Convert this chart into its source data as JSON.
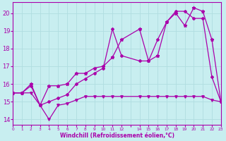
{
  "xlabel": "Windchill (Refroidissement éolien,°C)",
  "bg_color": "#c8eef0",
  "grid_color": "#b0dde0",
  "line_color": "#aa00aa",
  "xlim": [
    -0.5,
    23.5
  ],
  "ylim": [
    13.7,
    20.6
  ],
  "y_ticks": [
    14,
    15,
    16,
    17,
    18,
    19,
    20
  ],
  "x_tick_labels": [
    "0",
    "1",
    "2",
    "3",
    "4",
    "5",
    "6",
    "7",
    "8",
    "9",
    "1011",
    "12",
    "",
    "14",
    "15",
    "16",
    "17",
    "18",
    "19",
    "20",
    "21",
    "22",
    "23"
  ],
  "series1_x": [
    0,
    1,
    2,
    3,
    4,
    5,
    6,
    7,
    8,
    9,
    10,
    11,
    12,
    14,
    15,
    16,
    17,
    18,
    19,
    20,
    21,
    22,
    23
  ],
  "series1_y": [
    15.5,
    15.5,
    15.9,
    14.8,
    15.0,
    15.2,
    15.4,
    16.0,
    16.3,
    16.6,
    16.9,
    19.1,
    17.6,
    17.3,
    17.3,
    18.5,
    19.5,
    20.1,
    20.1,
    19.7,
    19.7,
    16.4,
    15.0
  ],
  "series2_x": [
    0,
    1,
    2,
    3,
    4,
    5,
    6,
    7,
    8,
    9,
    10,
    11,
    12,
    14,
    15,
    16,
    17,
    18,
    19,
    20,
    21,
    22,
    23
  ],
  "series2_y": [
    15.5,
    15.5,
    15.5,
    14.8,
    14.0,
    14.8,
    14.9,
    15.1,
    15.3,
    15.3,
    15.3,
    15.3,
    15.3,
    15.3,
    15.3,
    15.3,
    15.3,
    15.3,
    15.3,
    15.3,
    15.3,
    15.1,
    15.0
  ],
  "series3_x": [
    0,
    1,
    2,
    3,
    4,
    5,
    6,
    7,
    8,
    9,
    10,
    11,
    12,
    14,
    15,
    16,
    17,
    18,
    19,
    20,
    21,
    22,
    23
  ],
  "series3_y": [
    15.5,
    15.5,
    16.0,
    14.8,
    15.9,
    15.9,
    16.0,
    16.6,
    16.6,
    16.9,
    17.0,
    17.5,
    18.5,
    19.1,
    17.3,
    17.6,
    19.5,
    20.0,
    19.3,
    20.3,
    20.1,
    18.5,
    15.0
  ]
}
